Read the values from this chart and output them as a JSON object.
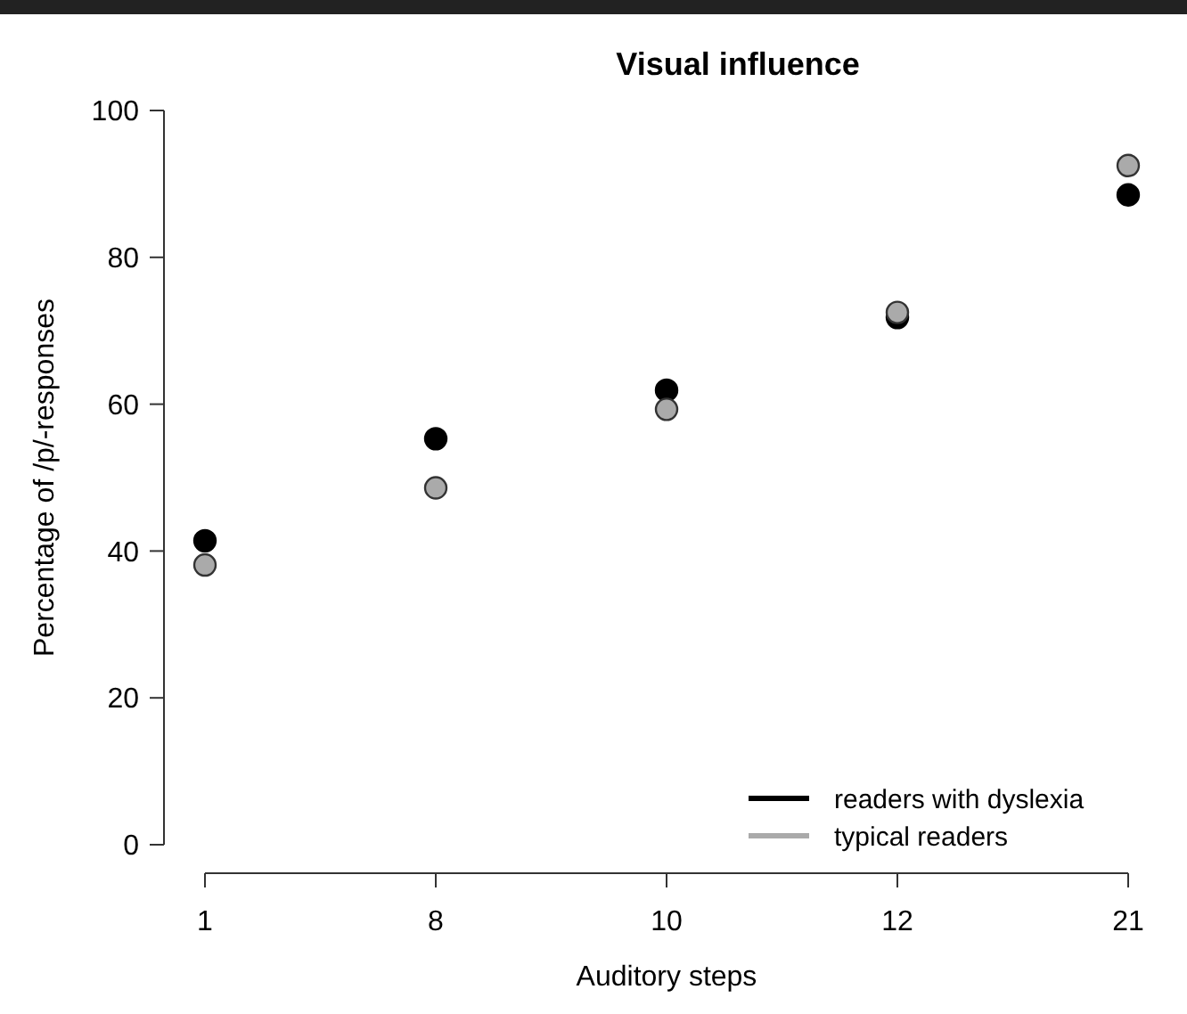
{
  "chart_data": {
    "type": "scatter",
    "title": "Visual influence",
    "xlabel": "Auditory steps",
    "ylabel": "Percentage of /p/-responses",
    "categories": [
      "1",
      "8",
      "10",
      "12",
      "21"
    ],
    "series": [
      {
        "name": "readers with dyslexia",
        "color": "#000000",
        "values": [
          41.4,
          55.3,
          61.9,
          71.8,
          88.5
        ]
      },
      {
        "name": "typical readers",
        "color": "#aaaaaa",
        "values": [
          38.1,
          48.6,
          59.3,
          72.5,
          92.5
        ]
      }
    ],
    "ylim": [
      0,
      100
    ],
    "yticks": [
      0,
      20,
      40,
      60,
      80,
      100
    ],
    "grid": false,
    "legend": "bottom right",
    "marker": "circle"
  }
}
